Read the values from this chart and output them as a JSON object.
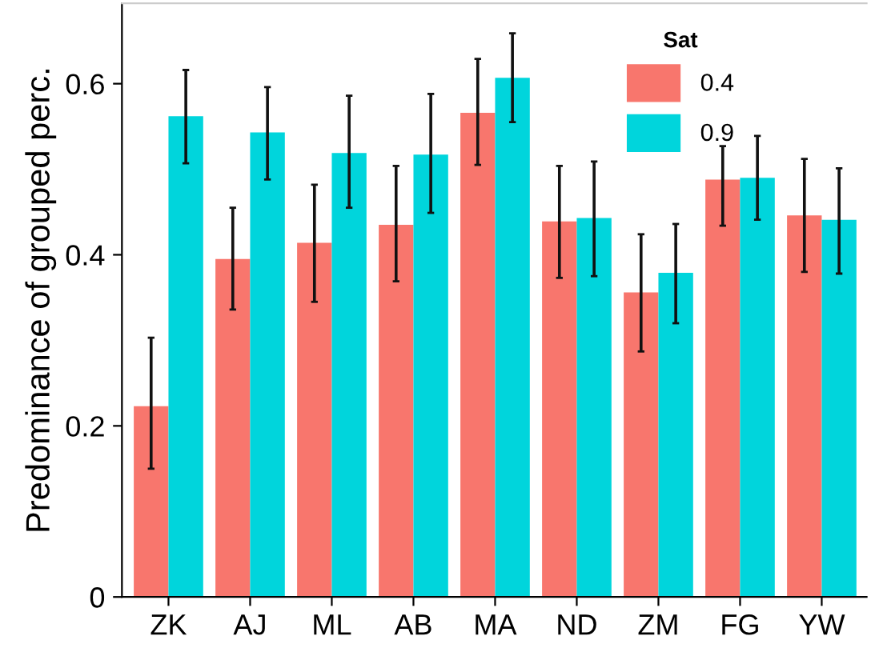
{
  "chart_data": {
    "type": "bar",
    "ylabel": "Predominance of grouped perc.",
    "legend_title": "Sat",
    "categories": [
      "ZK",
      "AJ",
      "ML",
      "AB",
      "MA",
      "ND",
      "ZM",
      "FG",
      "YW"
    ],
    "series": [
      {
        "name": "0.4",
        "color": "#f8766d",
        "values": [
          0.223,
          0.395,
          0.414,
          0.435,
          0.566,
          0.439,
          0.356,
          0.488,
          0.446
        ],
        "errors": [
          [
            0.15,
            0.303
          ],
          [
            0.336,
            0.455
          ],
          [
            0.345,
            0.482
          ],
          [
            0.369,
            0.504
          ],
          [
            0.505,
            0.629
          ],
          [
            0.373,
            0.504
          ],
          [
            0.287,
            0.424
          ],
          [
            0.434,
            0.527
          ],
          [
            0.38,
            0.512
          ]
        ]
      },
      {
        "name": "0.9",
        "color": "#00d5dc",
        "values": [
          0.562,
          0.543,
          0.519,
          0.517,
          0.607,
          0.443,
          0.379,
          0.49,
          0.441
        ],
        "errors": [
          [
            0.507,
            0.616
          ],
          [
            0.488,
            0.596
          ],
          [
            0.455,
            0.586
          ],
          [
            0.449,
            0.588
          ],
          [
            0.555,
            0.659
          ],
          [
            0.375,
            0.509
          ],
          [
            0.32,
            0.436
          ],
          [
            0.441,
            0.539
          ],
          [
            0.378,
            0.501
          ]
        ]
      }
    ],
    "ylim": [
      0,
      0.694
    ],
    "yticks": [
      0,
      0.2,
      0.4,
      0.6
    ],
    "grid": false,
    "legend": "top right"
  }
}
